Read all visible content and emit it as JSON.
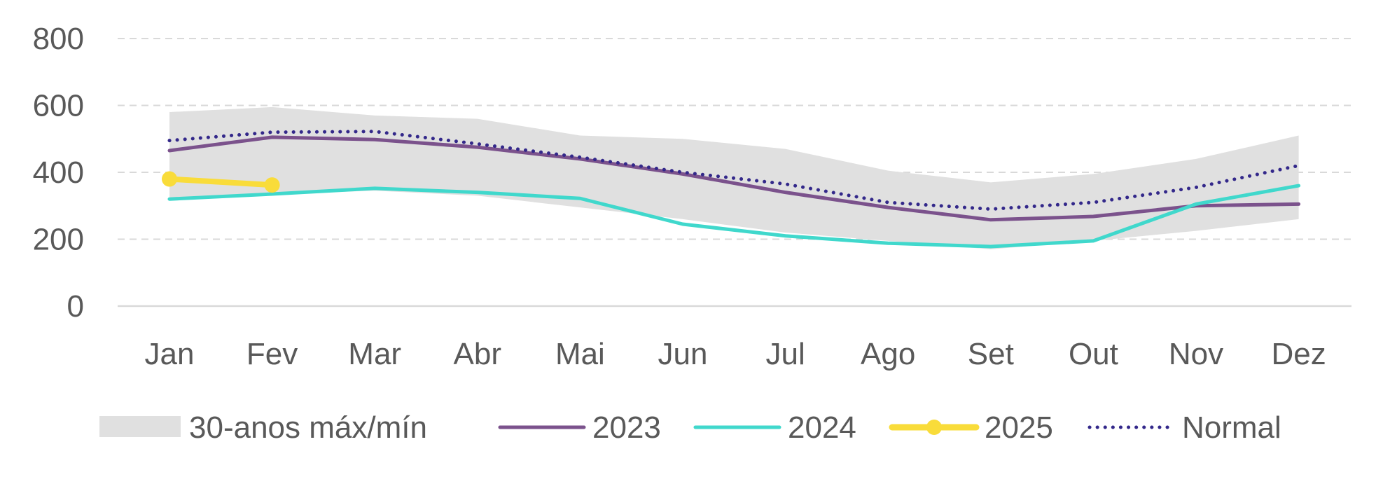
{
  "chart_data": {
    "type": "line",
    "title": "",
    "xlabel": "",
    "ylabel": "",
    "categories": [
      "Jan",
      "Fev",
      "Mar",
      "Abr",
      "Mai",
      "Jun",
      "Jul",
      "Ago",
      "Set",
      "Out",
      "Nov",
      "Dez"
    ],
    "ylim": [
      0,
      800
    ],
    "yticks": [
      "0",
      "200",
      "400",
      "600",
      "800"
    ],
    "grid": "horizontal-dashed",
    "legend_position": "bottom",
    "band": {
      "name": "30-anos máx/mín",
      "color": "#e0e0e0",
      "max": [
        580,
        595,
        570,
        560,
        510,
        500,
        470,
        405,
        370,
        395,
        440,
        510
      ],
      "min": [
        320,
        335,
        345,
        330,
        295,
        260,
        220,
        195,
        170,
        195,
        225,
        260
      ]
    },
    "series": [
      {
        "name": "2023",
        "color": "#7b528c",
        "style": "solid",
        "values": [
          465,
          505,
          498,
          475,
          440,
          395,
          340,
          295,
          258,
          268,
          300,
          305
        ]
      },
      {
        "name": "2024",
        "color": "#40d8cc",
        "style": "solid",
        "values": [
          320,
          335,
          352,
          340,
          322,
          245,
          210,
          188,
          178,
          195,
          305,
          360
        ]
      },
      {
        "name": "2025",
        "color": "#f9dc3a",
        "style": "solid-markers",
        "values": [
          380,
          362,
          null,
          null,
          null,
          null,
          null,
          null,
          null,
          null,
          null,
          null
        ]
      },
      {
        "name": "Normal",
        "color": "#33288a",
        "style": "dotted",
        "values": [
          495,
          520,
          522,
          485,
          445,
          400,
          365,
          310,
          290,
          310,
          355,
          420
        ]
      }
    ]
  }
}
